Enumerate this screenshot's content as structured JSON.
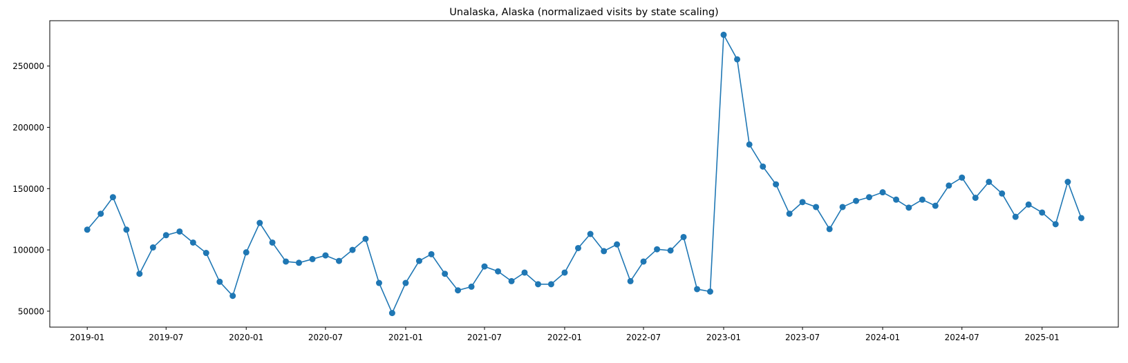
{
  "chart_data": {
    "type": "line",
    "title": "Unalaska, Alaska (normalizaed visits by state scaling)",
    "xlabel": "",
    "ylabel": "",
    "marker": "circle",
    "color": "#1f77b4",
    "grid": false,
    "legend": false,
    "xlim": [
      "2018-10-07",
      "2025-06-25"
    ],
    "ylim": [
      37000,
      287000
    ],
    "x_ticks": [
      "2019-01",
      "2019-07",
      "2020-01",
      "2020-07",
      "2021-01",
      "2021-07",
      "2022-01",
      "2022-07",
      "2023-01",
      "2023-07",
      "2024-01",
      "2024-07",
      "2025-01"
    ],
    "y_ticks": [
      50000,
      100000,
      150000,
      200000,
      250000
    ],
    "x": [
      "2019-01-01",
      "2019-02-01",
      "2019-03-01",
      "2019-04-01",
      "2019-05-01",
      "2019-06-01",
      "2019-07-01",
      "2019-08-01",
      "2019-09-01",
      "2019-10-01",
      "2019-11-01",
      "2019-12-01",
      "2020-01-01",
      "2020-02-01",
      "2020-03-01",
      "2020-04-01",
      "2020-05-01",
      "2020-06-01",
      "2020-07-01",
      "2020-08-01",
      "2020-09-01",
      "2020-10-01",
      "2020-11-01",
      "2020-12-01",
      "2021-01-01",
      "2021-02-01",
      "2021-03-01",
      "2021-04-01",
      "2021-05-01",
      "2021-06-01",
      "2021-07-01",
      "2021-08-01",
      "2021-09-01",
      "2021-10-01",
      "2021-11-01",
      "2021-12-01",
      "2022-01-01",
      "2022-02-01",
      "2022-03-01",
      "2022-04-01",
      "2022-05-01",
      "2022-06-01",
      "2022-07-01",
      "2022-08-01",
      "2022-09-01",
      "2022-10-01",
      "2022-11-01",
      "2022-12-01",
      "2023-01-01",
      "2023-02-01",
      "2023-03-01",
      "2023-04-01",
      "2023-05-01",
      "2023-06-01",
      "2023-07-01",
      "2023-08-01",
      "2023-09-01",
      "2023-10-01",
      "2023-11-01",
      "2023-12-01",
      "2024-01-01",
      "2024-02-01",
      "2024-03-01",
      "2024-04-01",
      "2024-05-01",
      "2024-06-01",
      "2024-07-01",
      "2024-08-01",
      "2024-09-01",
      "2024-10-01",
      "2024-11-01",
      "2024-12-01",
      "2025-01-01",
      "2025-02-01",
      "2025-03-01",
      "2025-04-01"
    ],
    "series": [
      {
        "values": [
          116500,
          129500,
          143000,
          116500,
          80500,
          102000,
          112000,
          115000,
          106000,
          97500,
          74000,
          62500,
          98000,
          122000,
          106000,
          90500,
          89500,
          92500,
          95500,
          91000,
          100000,
          109000,
          73000,
          48500,
          73000,
          91000,
          96500,
          80500,
          67000,
          70000,
          86500,
          82500,
          74500,
          81500,
          72000,
          72000,
          81500,
          101500,
          113000,
          99000,
          104500,
          74500,
          90500,
          100500,
          99500,
          110500,
          68000,
          66000,
          275500,
          255500,
          186000,
          168000,
          153500,
          129500,
          139000,
          135000,
          117000,
          135000,
          140000,
          143000,
          147000,
          141000,
          134500,
          141000,
          136000,
          152500,
          159000,
          142500,
          155500,
          146000,
          127000,
          137000,
          130500,
          121000,
          155500,
          126000
        ]
      }
    ]
  }
}
